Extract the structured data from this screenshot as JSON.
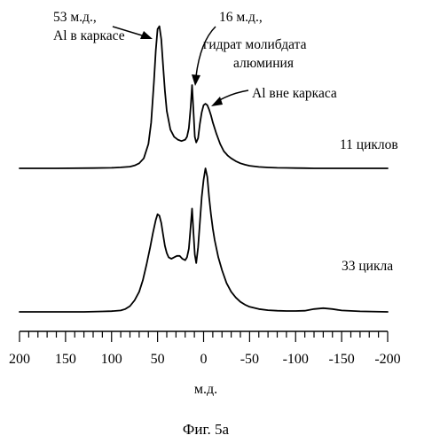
{
  "chart_data": {
    "type": "line",
    "xlabel": "м.д.",
    "x_reversed": true,
    "xlim": [
      200,
      -200
    ],
    "xticks": [
      200,
      150,
      100,
      50,
      0,
      -50,
      -100,
      -150,
      -200
    ],
    "xtick_labels": [
      "200",
      "150",
      "100",
      "50",
      "0",
      "-50",
      "-100",
      "-150",
      "-200"
    ],
    "minor_tick_step": 10,
    "series": [
      {
        "name": "11 циклов",
        "label": "11 циклов",
        "x": [
          200,
          160,
          120,
          100,
          90,
          80,
          75,
          70,
          65,
          60,
          57,
          54,
          52,
          50,
          48,
          46,
          44,
          42,
          40,
          36,
          32,
          28,
          24,
          20,
          18,
          16,
          14,
          12.5,
          11,
          9.5,
          8,
          6,
          4,
          2,
          0,
          -2,
          -4,
          -6,
          -8,
          -10,
          -14,
          -18,
          -22,
          -26,
          -30,
          -35,
          -40,
          -45,
          -50,
          -60,
          -70,
          -80,
          -90,
          -100,
          -110,
          -120,
          -140,
          -160,
          -180,
          -200
        ],
        "y": [
          0,
          0,
          0.002,
          0.004,
          0.007,
          0.012,
          0.02,
          0.035,
          0.07,
          0.17,
          0.32,
          0.6,
          0.82,
          0.97,
          0.99,
          0.9,
          0.72,
          0.54,
          0.4,
          0.27,
          0.22,
          0.2,
          0.19,
          0.2,
          0.22,
          0.28,
          0.43,
          0.58,
          0.4,
          0.22,
          0.18,
          0.21,
          0.31,
          0.39,
          0.44,
          0.45,
          0.44,
          0.41,
          0.37,
          0.32,
          0.24,
          0.17,
          0.12,
          0.09,
          0.07,
          0.05,
          0.035,
          0.025,
          0.018,
          0.01,
          0.006,
          0.004,
          0.003,
          0.002,
          0.001,
          0,
          0,
          0,
          0,
          0
        ]
      },
      {
        "name": "33 цикла",
        "label": "33 цикла",
        "x": [
          200,
          160,
          130,
          110,
          100,
          90,
          85,
          80,
          75,
          70,
          66,
          62,
          58,
          55,
          52,
          50,
          48,
          46,
          44,
          42,
          40,
          38,
          35,
          32,
          29,
          26,
          23,
          20,
          18,
          16,
          14,
          12.5,
          11,
          9.5,
          8,
          6,
          4,
          2,
          0,
          -2,
          -4,
          -6,
          -8,
          -10,
          -12,
          -16,
          -20,
          -25,
          -30,
          -35,
          -40,
          -45,
          -50,
          -60,
          -70,
          -80,
          -90,
          -100,
          -110,
          -120,
          -130,
          -140,
          -150,
          -170,
          -200
        ],
        "y": [
          0,
          0,
          0,
          0.003,
          0.005,
          0.01,
          0.02,
          0.04,
          0.08,
          0.14,
          0.22,
          0.33,
          0.45,
          0.55,
          0.64,
          0.68,
          0.67,
          0.62,
          0.54,
          0.46,
          0.41,
          0.38,
          0.37,
          0.38,
          0.39,
          0.39,
          0.37,
          0.36,
          0.38,
          0.44,
          0.6,
          0.72,
          0.55,
          0.4,
          0.34,
          0.45,
          0.62,
          0.8,
          0.92,
          1.0,
          0.94,
          0.8,
          0.68,
          0.58,
          0.5,
          0.38,
          0.29,
          0.2,
          0.14,
          0.1,
          0.07,
          0.05,
          0.035,
          0.02,
          0.012,
          0.008,
          0.006,
          0.006,
          0.008,
          0.02,
          0.026,
          0.02,
          0.01,
          0.004,
          0
        ]
      }
    ],
    "annotations": [
      {
        "text_lines": [
          "53 м.д.,",
          "Al в каркасе"
        ],
        "target_x": 50
      },
      {
        "text_lines": [
          "16 м.д.,",
          "гидрат молибдата",
          "алюминия"
        ],
        "target_x": 12.5
      },
      {
        "text_lines": [
          "Al вне каркаса"
        ],
        "target_x": -2
      }
    ],
    "caption": "Фиг. 5а"
  }
}
